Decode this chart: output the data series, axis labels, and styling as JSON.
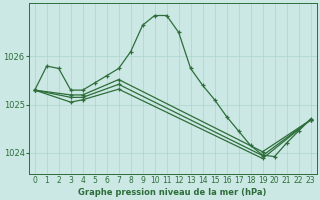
{
  "title": "Graphe pression niveau de la mer (hPa)",
  "bg_color": "#cce8e4",
  "grid_color": "#aad4cc",
  "line_color": "#2d6e3a",
  "ylim": [
    1023.55,
    1027.1
  ],
  "yticks": [
    1024,
    1025,
    1026
  ],
  "series1": [
    1025.3,
    1025.8,
    1025.75,
    1025.3,
    1025.3,
    1025.45,
    1025.6,
    1025.75,
    1026.1,
    1026.65,
    1026.85,
    1026.85,
    1026.5,
    1025.75,
    1025.4,
    1025.1,
    1024.75,
    1024.45,
    1024.15,
    1023.95,
    1023.92,
    1024.2,
    1024.45,
    1024.7
  ],
  "series2_x": [
    0,
    3,
    4,
    7,
    19,
    23
  ],
  "series2_y": [
    1025.3,
    1025.2,
    1025.2,
    1025.52,
    1024.02,
    1024.68
  ],
  "series3_x": [
    0,
    3,
    4,
    7,
    19,
    23
  ],
  "series3_y": [
    1025.3,
    1025.15,
    1025.15,
    1025.42,
    1023.94,
    1024.68
  ],
  "series4_x": [
    0,
    3,
    4,
    7,
    19,
    23
  ],
  "series4_y": [
    1025.3,
    1025.05,
    1025.1,
    1025.32,
    1023.88,
    1024.68
  ],
  "xlabel_fontsize": 6.0,
  "tick_fontsize": 5.5,
  "ytick_fontsize": 6.0
}
